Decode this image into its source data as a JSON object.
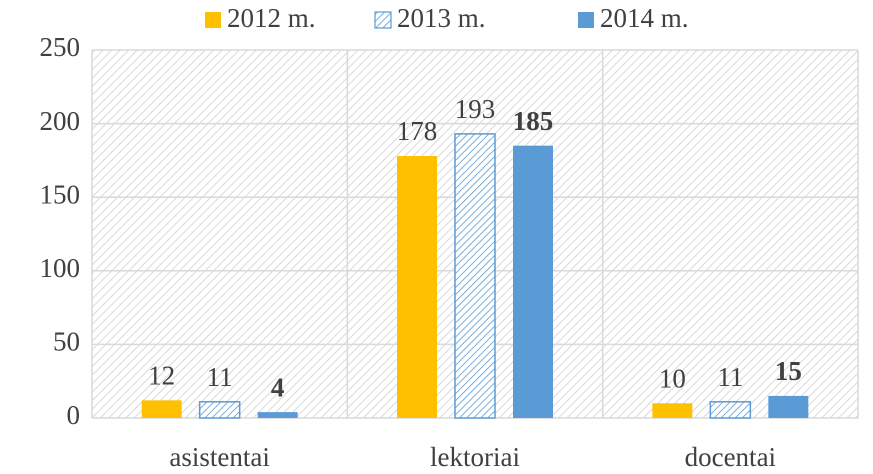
{
  "chart_data": {
    "type": "bar",
    "categories": [
      "asistentai",
      "lektoriai",
      "docentai"
    ],
    "series": [
      {
        "name": "2012 m.",
        "color": "#FFC000",
        "values": [
          12,
          178,
          10
        ]
      },
      {
        "name": "2013 m.",
        "color": "#5B9BD5",
        "pattern": "hatch",
        "values": [
          11,
          193,
          11
        ]
      },
      {
        "name": "2014 m.",
        "color": "#5B9BD5",
        "label_weight": "bold",
        "values": [
          4,
          185,
          15
        ]
      }
    ],
    "ylim": [
      0,
      250
    ],
    "yticks": [
      0,
      50,
      100,
      150,
      200,
      250
    ],
    "grid": true,
    "legend": "top"
  }
}
